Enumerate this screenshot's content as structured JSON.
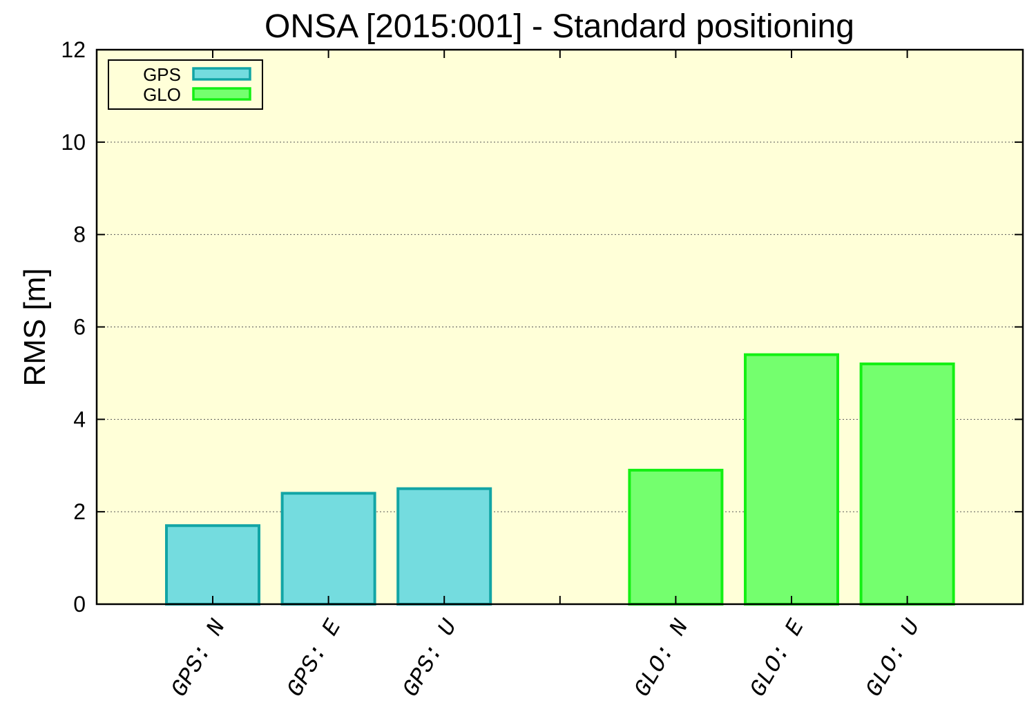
{
  "chart_data": {
    "type": "bar",
    "title": "ONSA [2015:001] - Standard positioning",
    "ylabel": "RMS [m]",
    "xlabel": "",
    "ylim": [
      0,
      12
    ],
    "yticks": [
      0,
      2,
      4,
      6,
      8,
      10,
      12
    ],
    "grid": "horizontal dotted",
    "legend_position": "top-left",
    "background_color": "#ffffd8",
    "categories": [
      "GPS: N",
      "GPS: E",
      "GPS: U",
      "",
      "GLO: N",
      "GLO: E",
      "GLO: U"
    ],
    "series": [
      {
        "name": "GPS",
        "fill": "#74dcdf",
        "stroke": "#12a5a5",
        "values": [
          1.7,
          2.4,
          2.5,
          null,
          null,
          null,
          null
        ]
      },
      {
        "name": "GLO",
        "fill": "#74ff6e",
        "stroke": "#14f014",
        "values": [
          null,
          null,
          null,
          null,
          2.9,
          5.4,
          5.2
        ]
      }
    ]
  }
}
